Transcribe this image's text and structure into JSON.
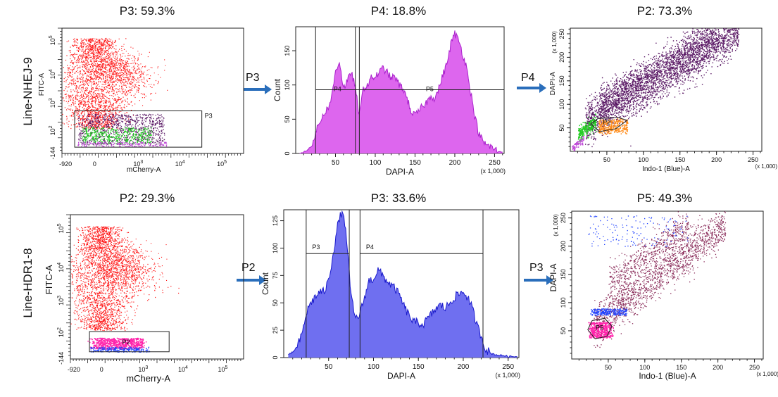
{
  "colors": {
    "red": "#ff1a1a",
    "purple": "#5b1a66",
    "green": "#22cc22",
    "violet": "#c04bd8",
    "magenta_fill": "#dd66ee",
    "magenta_line": "#aa22cc",
    "blue_fill": "#6f6ff0",
    "blue_line": "#1a1acc",
    "orange": "#ff8c1a",
    "maroon": "#8a2c5a",
    "pink": "#ff22aa",
    "dot_blue": "#2244ff",
    "arrow": "#2a6ebb"
  },
  "rows": [
    {
      "label": "Line-NHEJ-9"
    },
    {
      "label": "Line-HDR1-8"
    }
  ],
  "arrows": [
    "P3",
    "P4",
    "P2",
    "P3"
  ],
  "chart_data": [
    {
      "type": "scatter",
      "title": "P3: 59.3%",
      "xlabel": "mCherry-A",
      "ylabel": "FITC-A",
      "xticks": [
        "-920",
        "0",
        "10^3",
        "10^4",
        "10^5"
      ],
      "yticks": [
        "-144",
        "10^2",
        "10^3",
        "10^4",
        "10^5"
      ],
      "scale": "biexponential",
      "gates": [
        {
          "name": "P3",
          "shape": "rectangle"
        }
      ],
      "populations": [
        "red",
        "purple",
        "green",
        "violet"
      ]
    },
    {
      "type": "area",
      "title": "P4: 18.8%",
      "xlabel": "DAPI-A",
      "ylabel": "Count",
      "x_unit": "(x 1,000)",
      "xticks": [
        50,
        100,
        150,
        200,
        250
      ],
      "yticks": [
        0,
        50,
        100,
        150
      ],
      "xlim": [
        0,
        262
      ],
      "ylim": [
        0,
        185
      ],
      "gates": [
        {
          "name": "P4",
          "x": [
            25,
            80
          ]
        },
        {
          "name": "P5",
          "x": [
            75,
            262
          ]
        }
      ],
      "x": [
        5,
        10,
        15,
        20,
        25,
        30,
        35,
        40,
        45,
        50,
        55,
        60,
        65,
        70,
        75,
        80,
        85,
        90,
        95,
        100,
        105,
        110,
        115,
        120,
        125,
        130,
        135,
        140,
        145,
        150,
        155,
        160,
        165,
        170,
        175,
        180,
        185,
        190,
        195,
        200,
        205,
        210,
        215,
        220,
        225,
        230,
        235,
        240,
        245,
        250,
        255,
        260
      ],
      "values": [
        0,
        2,
        5,
        12,
        30,
        45,
        58,
        65,
        80,
        120,
        135,
        95,
        105,
        120,
        95,
        55,
        95,
        100,
        110,
        112,
        118,
        125,
        118,
        110,
        112,
        100,
        95,
        80,
        62,
        55,
        62,
        70,
        75,
        85,
        80,
        95,
        115,
        130,
        160,
        175,
        165,
        145,
        125,
        90,
        55,
        30,
        18,
        12,
        10,
        6,
        3,
        2
      ]
    },
    {
      "type": "scatter",
      "title": "P2: 73.3%",
      "xlabel": "Indo-1 (Blue)-A",
      "ylabel": "DAPI-A",
      "x_unit": "(x 1,000)",
      "y_unit": "(x 1,000)",
      "xticks": [
        50,
        100,
        150,
        200,
        250
      ],
      "yticks": [
        50,
        100,
        150,
        200,
        250
      ],
      "xlim": [
        0,
        262
      ],
      "ylim": [
        0,
        262
      ],
      "gates": [
        {
          "name": "P2",
          "shape": "polygon"
        }
      ],
      "populations": [
        "purple",
        "green",
        "orange",
        "violet"
      ]
    },
    {
      "type": "scatter",
      "title": "P2: 29.3%",
      "xlabel": "mCherry-A",
      "ylabel": "FITC-A",
      "xticks": [
        "-920",
        "0",
        "10^3",
        "10^4",
        "10^5"
      ],
      "yticks": [
        "-144",
        "10^2",
        "10^3",
        "10^4",
        "10^5"
      ],
      "scale": "biexponential",
      "gates": [
        {
          "name": "P2",
          "shape": "rectangle"
        }
      ],
      "populations": [
        "red",
        "pink",
        "blue"
      ]
    },
    {
      "type": "area",
      "title": "P3: 33.6%",
      "xlabel": "DAPI-A",
      "ylabel": "Count",
      "x_unit": "(x 1,000)",
      "xticks": [
        50,
        100,
        150,
        200,
        250
      ],
      "yticks": [
        0,
        25,
        50,
        75,
        100,
        125
      ],
      "xlim": [
        0,
        262
      ],
      "ylim": [
        0,
        135
      ],
      "gates": [
        {
          "name": "P3",
          "x": [
            25,
            73
          ]
        },
        {
          "name": "P4",
          "x": [
            85,
            222
          ]
        }
      ],
      "x": [
        5,
        10,
        15,
        20,
        25,
        30,
        35,
        40,
        45,
        50,
        55,
        60,
        65,
        70,
        75,
        80,
        85,
        90,
        95,
        100,
        105,
        110,
        115,
        120,
        125,
        130,
        135,
        140,
        145,
        150,
        155,
        160,
        165,
        170,
        175,
        180,
        185,
        190,
        195,
        200,
        205,
        210,
        215,
        220,
        225,
        230,
        235,
        240,
        245,
        250,
        255,
        260
      ],
      "values": [
        2,
        5,
        10,
        20,
        40,
        50,
        55,
        60,
        60,
        70,
        95,
        120,
        135,
        110,
        55,
        35,
        40,
        55,
        70,
        72,
        80,
        75,
        70,
        66,
        62,
        55,
        45,
        38,
        32,
        32,
        30,
        35,
        40,
        45,
        48,
        45,
        50,
        55,
        58,
        60,
        55,
        45,
        30,
        20,
        8,
        4,
        3,
        2,
        2,
        1,
        1,
        1
      ]
    },
    {
      "type": "scatter",
      "title": "P5: 49.3%",
      "xlabel": "Indo-1 (Blue)-A",
      "ylabel": "DAPI-A",
      "x_unit": "(x 1,000)",
      "y_unit": "(x 1,000)",
      "xticks": [
        50,
        100,
        150,
        200,
        250
      ],
      "yticks": [
        50,
        100,
        150,
        200,
        250
      ],
      "xlim": [
        0,
        262
      ],
      "ylim": [
        0,
        262
      ],
      "gates": [
        {
          "name": "P5",
          "shape": "polygon"
        }
      ],
      "populations": [
        "maroon",
        "blue",
        "pink"
      ]
    }
  ]
}
